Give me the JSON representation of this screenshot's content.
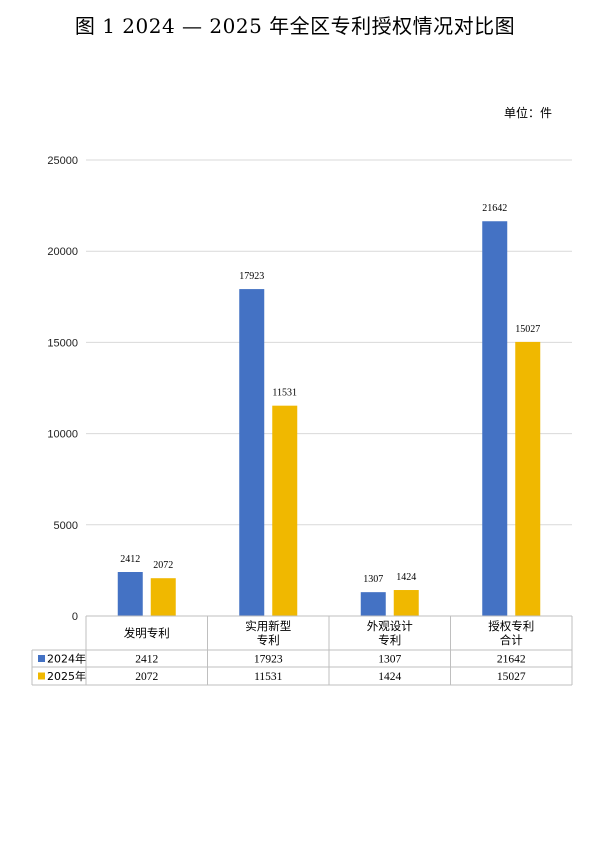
{
  "title": "图 1  2024 — 2025 年全区专利授权情况对比图",
  "unit_label": "单位：件",
  "colors": {
    "s2024": "#4472C4",
    "s2025": "#F0B800",
    "grid": "#d9d9d9",
    "table": "#bfbfbf"
  },
  "chart_data": {
    "type": "bar",
    "categories": [
      [
        "发明专利"
      ],
      [
        "实用新型",
        "专利"
      ],
      [
        "外观设计",
        "专利"
      ],
      [
        "授权专利",
        "合计"
      ]
    ],
    "series": [
      {
        "name": "2024年",
        "values": [
          2412,
          17923,
          1307,
          21642
        ]
      },
      {
        "name": "2025年",
        "values": [
          2072,
          11531,
          1424,
          15027
        ]
      }
    ],
    "ylim": [
      0,
      25000
    ],
    "yticks": [
      0,
      5000,
      10000,
      15000,
      20000,
      25000
    ],
    "grid": true,
    "legend": "data-table"
  }
}
